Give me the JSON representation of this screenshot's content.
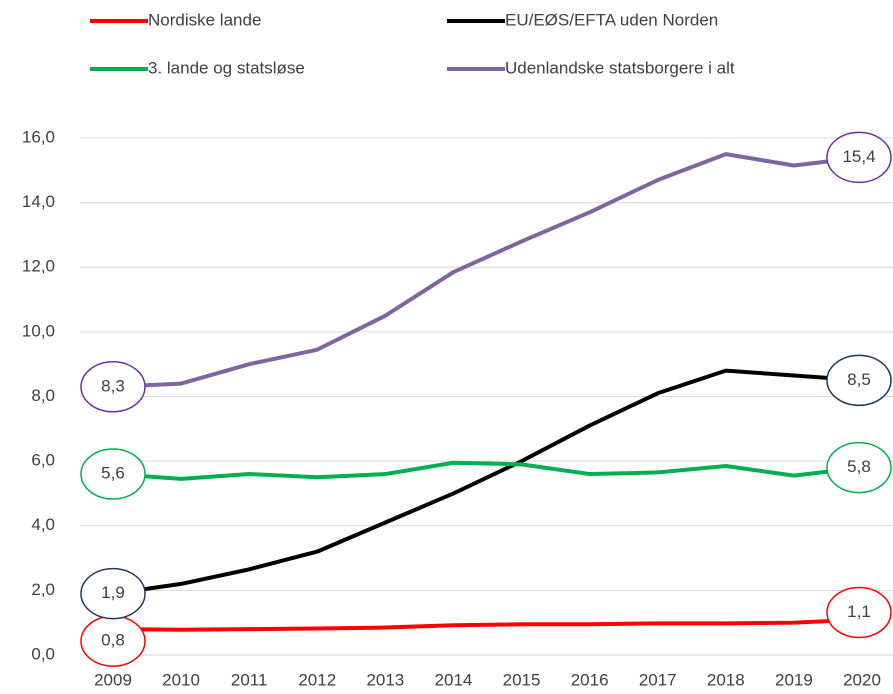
{
  "chart_data": {
    "type": "line",
    "categories": [
      "2009",
      "2010",
      "2011",
      "2012",
      "2013",
      "2014",
      "2015",
      "2016",
      "2017",
      "2018",
      "2019",
      "2020"
    ],
    "series": [
      {
        "name": "Nordiske lande",
        "color": "#ff0000",
        "label_color": "#ff0000",
        "values": [
          0.8,
          0.78,
          0.8,
          0.82,
          0.85,
          0.92,
          0.95,
          0.95,
          0.98,
          0.98,
          1.0,
          1.1
        ],
        "value_labels": [
          "0,8",
          null,
          null,
          null,
          null,
          null,
          null,
          null,
          null,
          null,
          null,
          "1,1"
        ]
      },
      {
        "name": "EU/EØS/EFTA uden Norden",
        "color": "#000000",
        "label_color": "#1f3864",
        "values": [
          1.9,
          2.2,
          2.65,
          3.2,
          4.1,
          5.0,
          6.0,
          7.1,
          8.1,
          8.8,
          8.65,
          8.5
        ],
        "value_labels": [
          "1,9",
          null,
          null,
          null,
          null,
          null,
          null,
          null,
          null,
          null,
          null,
          "8,5"
        ]
      },
      {
        "name": "3. lande og statsløse",
        "color": "#00b050",
        "label_color": "#00b050",
        "values": [
          5.6,
          5.45,
          5.6,
          5.5,
          5.6,
          5.95,
          5.9,
          5.6,
          5.65,
          5.85,
          5.55,
          5.8
        ],
        "value_labels": [
          "5,6",
          null,
          null,
          null,
          null,
          null,
          null,
          null,
          null,
          null,
          null,
          "5,8"
        ]
      },
      {
        "name": "Udenlandske statsborgere i alt",
        "color": "#8064a2",
        "label_color": "#7030a0",
        "values": [
          8.3,
          8.4,
          9.0,
          9.45,
          10.5,
          11.85,
          12.8,
          13.7,
          14.7,
          15.5,
          15.15,
          15.4
        ],
        "value_labels": [
          "8,3",
          null,
          null,
          null,
          null,
          null,
          null,
          null,
          null,
          null,
          null,
          "15,4"
        ]
      }
    ],
    "ylim": [
      0,
      16
    ],
    "yticks": [
      {
        "value": 0,
        "label": "0,0"
      },
      {
        "value": 2,
        "label": "2,0"
      },
      {
        "value": 4,
        "label": "4,0"
      },
      {
        "value": 6,
        "label": "6,0"
      },
      {
        "value": 8,
        "label": "8,0"
      },
      {
        "value": 10,
        "label": "10,0"
      },
      {
        "value": 12,
        "label": "12,0"
      },
      {
        "value": 14,
        "label": "14,0"
      },
      {
        "value": 16,
        "label": "16,0"
      }
    ],
    "grid": true,
    "legend": "top"
  }
}
